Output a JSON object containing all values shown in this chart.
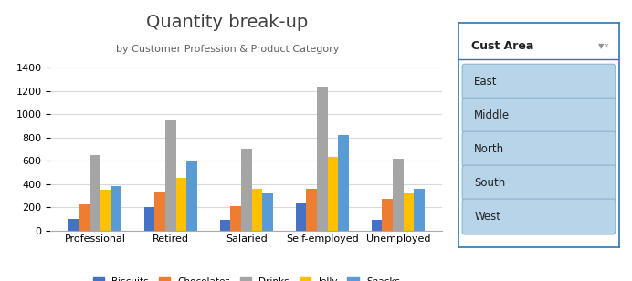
{
  "title": "Quantity break-up",
  "subtitle": "by Customer Profession & Product Category",
  "categories": [
    "Professional",
    "Retired",
    "Salaried",
    "Self-employed",
    "Unemployed"
  ],
  "series": {
    "Biscuits": [
      100,
      200,
      90,
      240,
      90
    ],
    "Chocolates": [
      225,
      335,
      210,
      360,
      275
    ],
    "Drinks": [
      650,
      950,
      700,
      1240,
      615
    ],
    "Jelly": [
      350,
      450,
      355,
      635,
      330
    ],
    "Snacks": [
      380,
      595,
      330,
      820,
      355
    ]
  },
  "bar_colors": [
    "#4472C4",
    "#ED7D31",
    "#A5A5A5",
    "#FFC000",
    "#5B9BD5"
  ],
  "ylim": [
    0,
    1500
  ],
  "yticks": [
    0,
    200,
    400,
    600,
    800,
    1000,
    1200,
    1400
  ],
  "slicer_title": "Cust Area",
  "slicer_items": [
    "East",
    "Middle",
    "North",
    "South",
    "West"
  ],
  "background": "#FFFFFF",
  "plot_bg": "#FFFFFF",
  "grid_color": "#D9D9D9",
  "slicer_box_color": "#B8D4E8",
  "slicer_border_color": "#2E75B6",
  "slicer_bg": "#FFFFFF"
}
